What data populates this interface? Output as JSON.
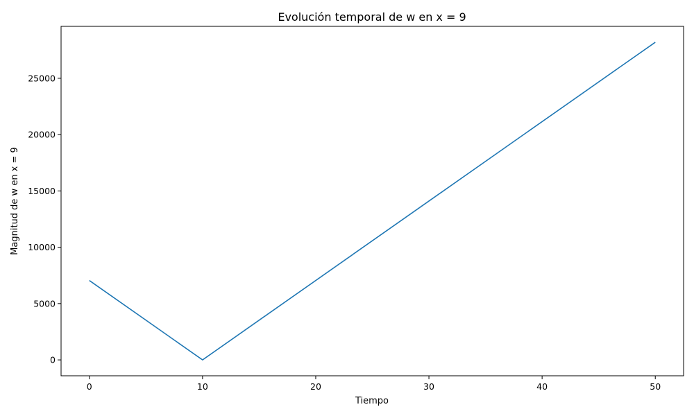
{
  "chart_data": {
    "type": "line",
    "title": "Evolución temporal de w en x = 9",
    "xlabel": "Tiempo",
    "ylabel": "Magnitud de w en x = 9",
    "xlim": [
      -2.5,
      52.5
    ],
    "ylim": [
      -1410,
      29610
    ],
    "x_ticks": [
      0,
      10,
      20,
      30,
      40,
      50
    ],
    "y_ticks": [
      0,
      5000,
      10000,
      15000,
      20000,
      25000
    ],
    "grid": false,
    "legend": "none",
    "series": [
      {
        "color": "#1f77b4",
        "x": [
          0,
          10,
          50
        ],
        "y": [
          7050,
          0,
          28200
        ]
      }
    ]
  }
}
